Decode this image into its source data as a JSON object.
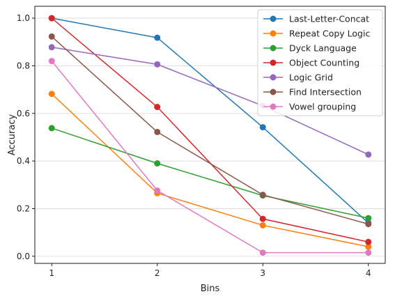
{
  "chart_data": {
    "type": "line",
    "title": "",
    "xlabel": "Bins",
    "ylabel": "Accuracy",
    "x": [
      1,
      2,
      3,
      4
    ],
    "x_tick_labels": [
      "1",
      "2",
      "3",
      "4"
    ],
    "xlim": [
      0.84,
      4.16
    ],
    "ylim": [
      -0.03,
      1.05
    ],
    "y_ticks": [
      0.0,
      0.2,
      0.4,
      0.6,
      0.8,
      1.0
    ],
    "y_tick_labels": [
      "0.0",
      "0.2",
      "0.4",
      "0.6",
      "0.8",
      "1.0"
    ],
    "grid": "horizontal",
    "legend_position": "top-right",
    "series": [
      {
        "name": "Last-Letter-Concat",
        "color": "#1f77b4",
        "values": [
          1.0,
          0.918,
          0.542,
          0.14
        ]
      },
      {
        "name": "Repeat Copy Logic",
        "color": "#ff7f0e",
        "values": [
          0.682,
          0.265,
          0.13,
          0.04
        ]
      },
      {
        "name": "Dyck Language",
        "color": "#2ca02c",
        "values": [
          0.538,
          0.39,
          0.255,
          0.16
        ]
      },
      {
        "name": "Object Counting",
        "color": "#d62728",
        "values": [
          1.0,
          0.627,
          0.157,
          0.06
        ]
      },
      {
        "name": "Logic Grid",
        "color": "#9467bd",
        "values": [
          0.878,
          0.806,
          0.632,
          0.427
        ]
      },
      {
        "name": "Find Intersection",
        "color": "#8c564b",
        "values": [
          0.923,
          0.522,
          0.258,
          0.135
        ]
      },
      {
        "name": "Vowel grouping",
        "color": "#e377c2",
        "values": [
          0.82,
          0.276,
          0.015,
          0.015
        ]
      }
    ]
  }
}
